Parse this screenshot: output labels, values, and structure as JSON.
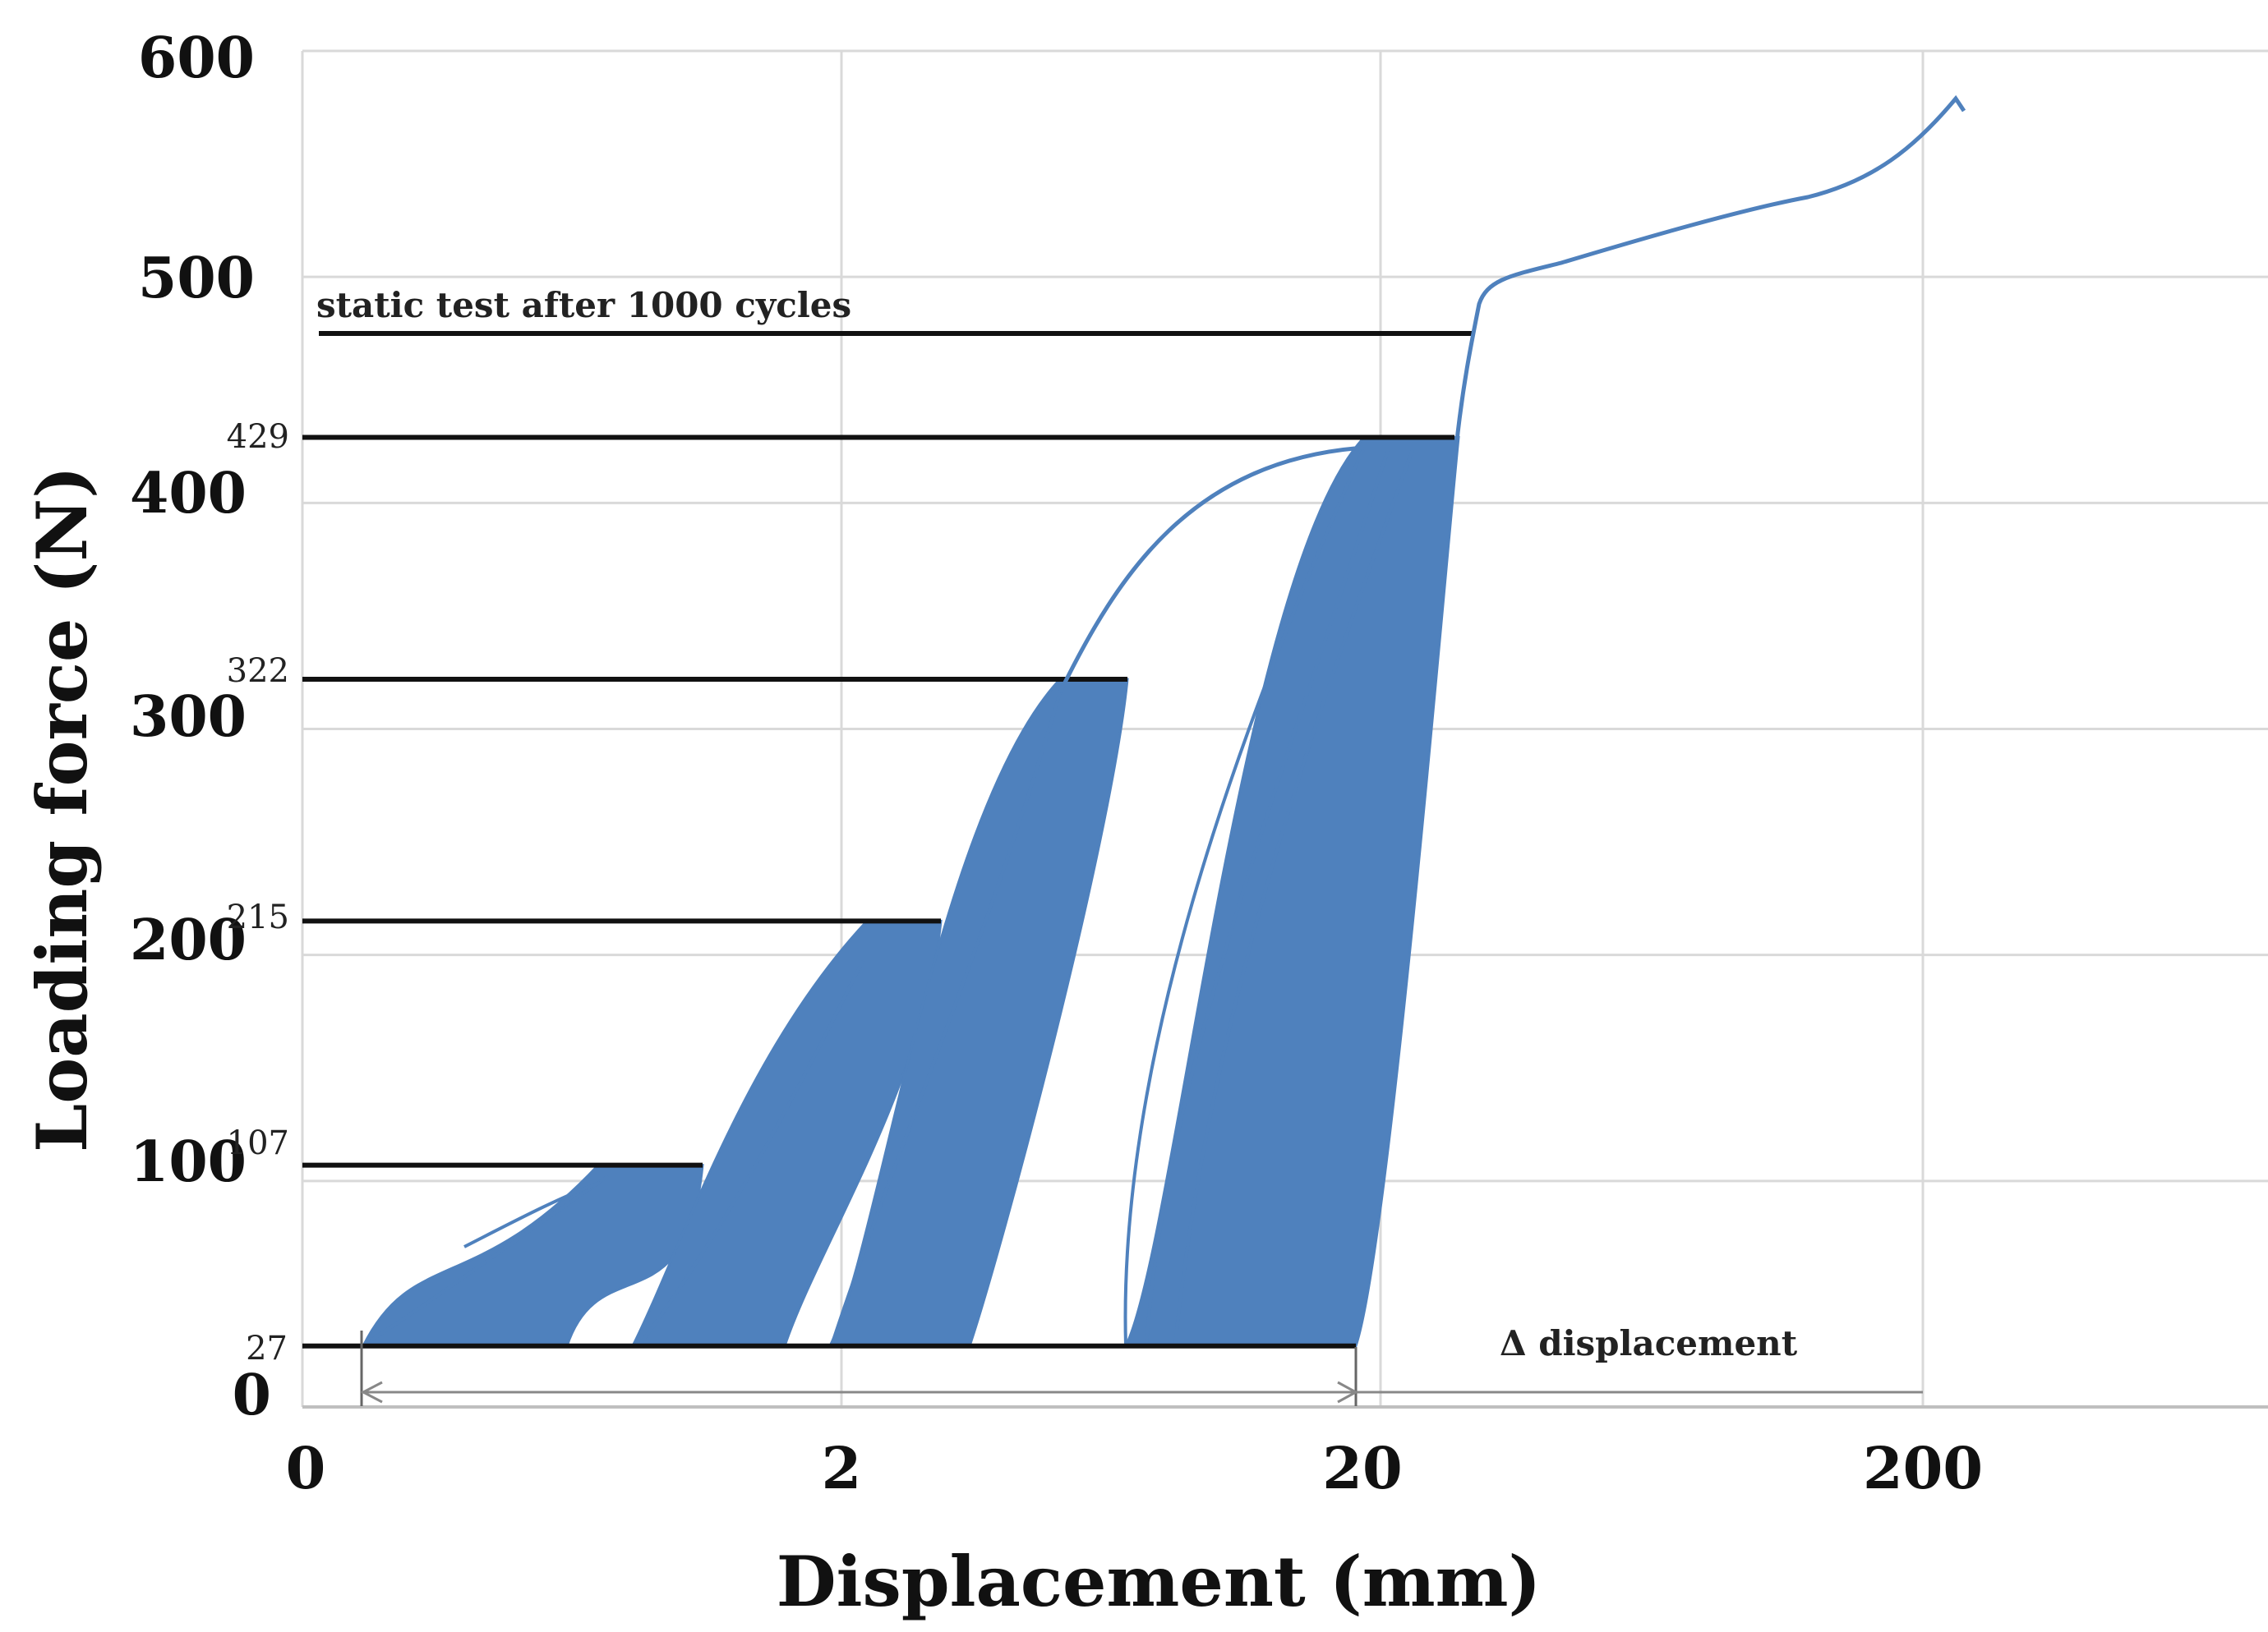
{
  "chart_data": {
    "type": "line",
    "xlabel": "Displacement (mm)",
    "ylabel": "Loading force (N)",
    "x_tick_labels": [
      "0",
      "2",
      "20",
      "200"
    ],
    "y_tick_labels": [
      "0",
      "100",
      "200",
      "300",
      "400",
      "500",
      "600"
    ],
    "y_tick_values": [
      0,
      100,
      200,
      300,
      400,
      500,
      600
    ],
    "ylim": [
      0,
      600
    ],
    "grid": true,
    "load_levels": [
      {
        "label": "27",
        "force": 27
      },
      {
        "label": "107",
        "force": 107
      },
      {
        "label": "215",
        "force": 215
      },
      {
        "label": "322",
        "force": 322
      },
      {
        "label": "429",
        "force": 429
      }
    ],
    "static_test_force": 475,
    "annotations": {
      "static_test": "static test after 1000 cycles",
      "delta_displacement": "Δ displacement"
    },
    "series_color": "#4f81bd",
    "static_curve": [
      [
        0,
        0
      ],
      [
        12,
        480
      ],
      [
        20,
        490
      ],
      [
        45,
        508
      ],
      [
        75,
        522
      ],
      [
        110,
        534
      ],
      [
        150,
        552
      ],
      [
        185,
        572
      ],
      [
        200,
        575
      ]
    ]
  }
}
